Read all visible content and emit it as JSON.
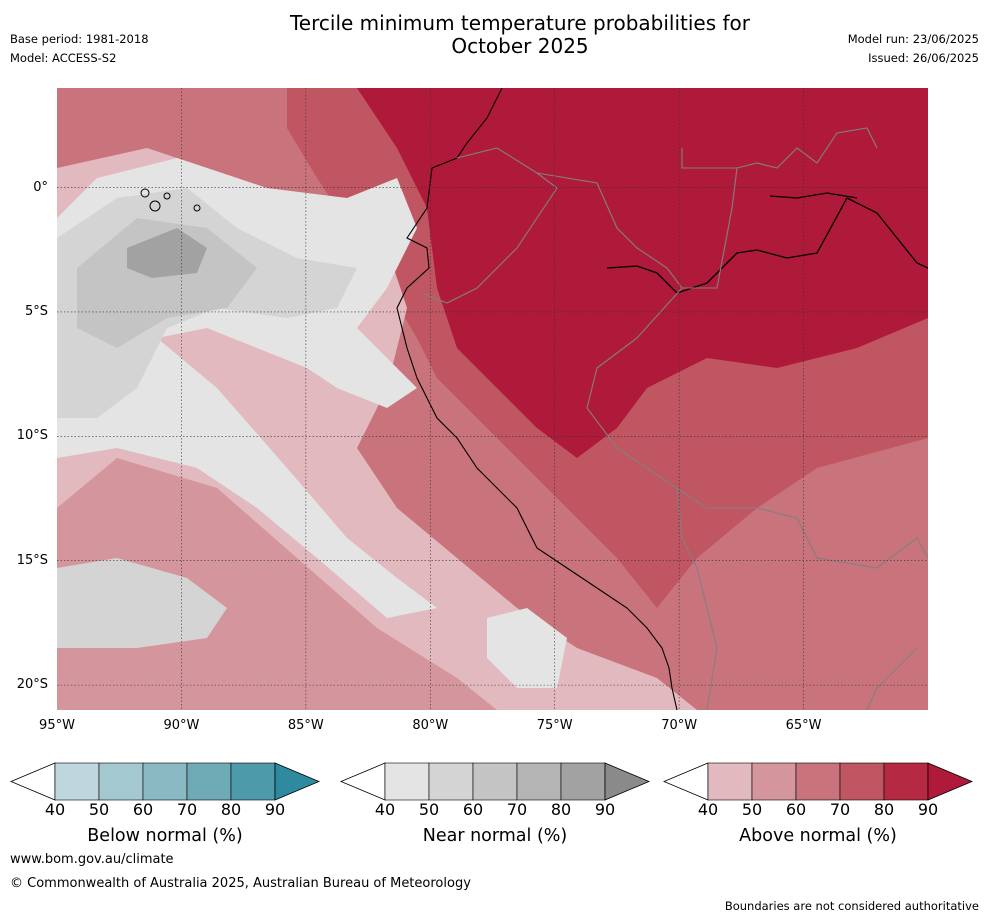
{
  "header": {
    "title_line1": "Tercile minimum temperature probabilities for",
    "title_line2": "October 2025",
    "base_period": "Base period: 1981-2018",
    "model": "Model: ACCESS-S2",
    "model_run": "Model run: 23/06/2025",
    "issued": "Issued: 26/06/2025"
  },
  "map": {
    "extent": {
      "lon_min": -95,
      "lon_max": -60,
      "lat_min": -21,
      "lat_max": 4
    },
    "lat_labels": [
      "0°",
      "5°S",
      "10°S",
      "15°S",
      "20°S"
    ],
    "lon_labels": [
      "95°W",
      "90°W",
      "85°W",
      "80°W",
      "75°W",
      "70°W",
      "65°W"
    ],
    "gridlines": true
  },
  "legends": [
    {
      "title": "Below normal (%)",
      "ticks": [
        "40",
        "50",
        "60",
        "70",
        "80",
        "90"
      ],
      "colors": [
        "#bdd7dd",
        "#a3c8d0",
        "#8ab9c3",
        "#6fabb7",
        "#4d9aaa",
        "#2e8b9f"
      ]
    },
    {
      "title": "Near normal (%)",
      "ticks": [
        "40",
        "50",
        "60",
        "70",
        "80",
        "90"
      ],
      "colors": [
        "#e4e4e4",
        "#d4d4d4",
        "#c4c4c4",
        "#b4b4b4",
        "#a2a2a2",
        "#8a8a8a"
      ]
    },
    {
      "title": "Above normal (%)",
      "ticks": [
        "40",
        "50",
        "60",
        "70",
        "80",
        "90"
      ],
      "colors": [
        "#e2b9be",
        "#d5959c",
        "#c9737c",
        "#bf5662",
        "#b52a42",
        "#b01a3a"
      ]
    }
  ],
  "footer": {
    "website": "www.bom.gov.au/climate",
    "copyright": "© Commonwealth of Australia 2025, Australian Bureau of Meteorology",
    "disclaimer": "Boundaries are not considered authoritative"
  }
}
